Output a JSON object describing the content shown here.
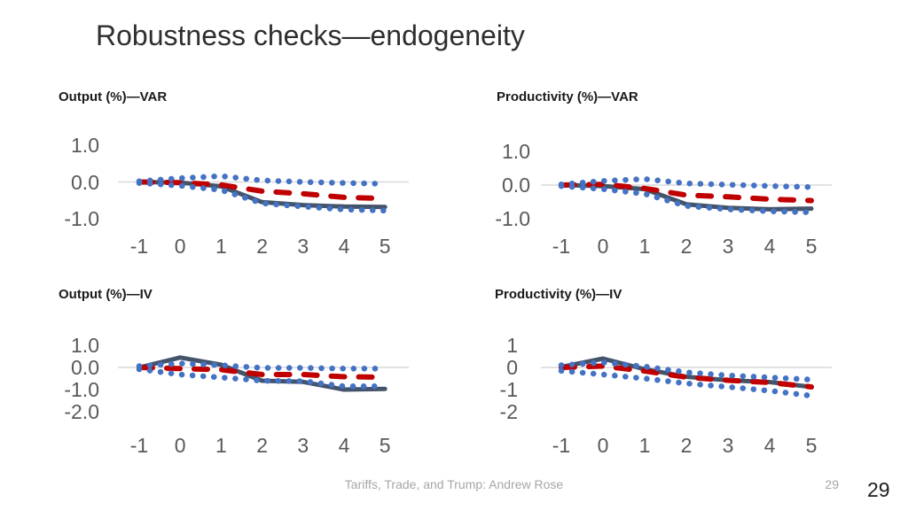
{
  "slide": {
    "title": "Robustness checks—endogeneity"
  },
  "footer": {
    "credit": "Tariffs, Trade, and Trump: Andrew Rose",
    "page_small": "29",
    "page": "29"
  },
  "colors": {
    "solid_line": "#44546A",
    "dashed_line": "#C00000",
    "dotted_band": "#4472C4",
    "gridline": "#D9D9D9",
    "tick_text": "#595959"
  },
  "chart_data": [
    {
      "type": "line",
      "title": "Output (%)—VAR",
      "x": [
        -1,
        0,
        1,
        2,
        3,
        4,
        5
      ],
      "xtick_labels": [
        "-1",
        "0",
        "1",
        "2",
        "3",
        "4",
        "5"
      ],
      "ytick_labels": [
        "1.0",
        "0.0",
        "-1.0"
      ],
      "ylim": [
        -1.0,
        1.0
      ],
      "grid": "zero-line-only",
      "legend": "none",
      "series": [
        {
          "name": "point-estimate-solid",
          "style": "solid",
          "color": "#44546A",
          "values": [
            0,
            -0.02,
            -0.12,
            -0.55,
            -0.63,
            -0.67,
            -0.68
          ]
        },
        {
          "name": "alt-estimate-dashed",
          "style": "dashed",
          "color": "#C00000",
          "values": [
            0,
            -0.02,
            -0.08,
            -0.25,
            -0.32,
            -0.42,
            -0.45
          ]
        },
        {
          "name": "band-upper-dotted",
          "style": "dotted",
          "color": "#4472C4",
          "values": [
            0.02,
            0.1,
            0.16,
            0.04,
            0.0,
            -0.03,
            -0.05
          ]
        },
        {
          "name": "band-lower-dotted",
          "style": "dotted",
          "color": "#4472C4",
          "values": [
            -0.03,
            -0.1,
            -0.22,
            -0.58,
            -0.67,
            -0.75,
            -0.78
          ]
        }
      ]
    },
    {
      "type": "line",
      "title": "Productivity (%)—VAR",
      "x": [
        -1,
        0,
        1,
        2,
        3,
        4,
        5
      ],
      "xtick_labels": [
        "-1",
        "0",
        "1",
        "2",
        "3",
        "4",
        "5"
      ],
      "ytick_labels": [
        "1.0",
        "0.0",
        "-1.0"
      ],
      "ylim": [
        -1.0,
        1.0
      ],
      "grid": "zero-line-only",
      "legend": "none",
      "series": [
        {
          "name": "point-estimate-solid",
          "style": "solid",
          "color": "#44546A",
          "values": [
            0,
            -0.03,
            -0.12,
            -0.57,
            -0.68,
            -0.72,
            -0.7
          ]
        },
        {
          "name": "alt-estimate-dashed",
          "style": "dashed",
          "color": "#C00000",
          "values": [
            0,
            0.02,
            -0.1,
            -0.3,
            -0.35,
            -0.42,
            -0.46
          ]
        },
        {
          "name": "band-upper-dotted",
          "style": "dotted",
          "color": "#4472C4",
          "values": [
            0.02,
            0.12,
            0.18,
            0.05,
            0.01,
            -0.03,
            -0.06
          ]
        },
        {
          "name": "band-lower-dotted",
          "style": "dotted",
          "color": "#4472C4",
          "values": [
            -0.03,
            -0.12,
            -0.26,
            -0.62,
            -0.72,
            -0.78,
            -0.81
          ]
        }
      ]
    },
    {
      "type": "line",
      "title": "Output (%)—IV",
      "x": [
        -1,
        0,
        1,
        2,
        3,
        4,
        5
      ],
      "xtick_labels": [
        "-1",
        "0",
        "1",
        "2",
        "3",
        "4",
        "5"
      ],
      "ytick_labels": [
        "1.0",
        "0.0",
        "-1.0",
        "-2.0"
      ],
      "ylim": [
        -2.0,
        1.0
      ],
      "grid": "zero-line-only",
      "legend": "none",
      "series": [
        {
          "name": "point-estimate-solid",
          "style": "solid",
          "color": "#44546A",
          "values": [
            0,
            0.45,
            0.12,
            -0.6,
            -0.65,
            -1.0,
            -0.97
          ]
        },
        {
          "name": "alt-estimate-dashed",
          "style": "dashed",
          "color": "#C00000",
          "values": [
            0,
            -0.05,
            -0.1,
            -0.32,
            -0.32,
            -0.42,
            -0.44
          ]
        },
        {
          "name": "band-upper-dotted",
          "style": "dotted",
          "color": "#4472C4",
          "values": [
            0.06,
            0.18,
            0.1,
            -0.02,
            -0.02,
            -0.05,
            -0.05
          ]
        },
        {
          "name": "band-lower-dotted",
          "style": "dotted",
          "color": "#4472C4",
          "values": [
            -0.08,
            -0.32,
            -0.45,
            -0.6,
            -0.62,
            -0.85,
            -0.85
          ]
        }
      ]
    },
    {
      "type": "line",
      "title": "Productivity (%)—IV",
      "x": [
        -1,
        0,
        1,
        2,
        3,
        4,
        5
      ],
      "xtick_labels": [
        "-1",
        "0",
        "1",
        "2",
        "3",
        "4",
        "5"
      ],
      "ytick_labels": [
        "1",
        "0",
        "-1",
        "-2"
      ],
      "ylim": [
        -2.0,
        1.0
      ],
      "grid": "zero-line-only",
      "legend": "none",
      "series": [
        {
          "name": "point-estimate-solid",
          "style": "solid",
          "color": "#44546A",
          "values": [
            0.02,
            0.4,
            -0.08,
            -0.42,
            -0.58,
            -0.66,
            -0.88
          ]
        },
        {
          "name": "alt-estimate-dashed",
          "style": "dashed",
          "color": "#C00000",
          "values": [
            0,
            0.06,
            -0.16,
            -0.44,
            -0.58,
            -0.68,
            -0.88
          ]
        },
        {
          "name": "band-upper-dotted",
          "style": "dotted",
          "color": "#4472C4",
          "values": [
            0.1,
            0.22,
            0.04,
            -0.22,
            -0.36,
            -0.45,
            -0.55
          ]
        },
        {
          "name": "band-lower-dotted",
          "style": "dotted",
          "color": "#4472C4",
          "values": [
            -0.15,
            -0.32,
            -0.5,
            -0.72,
            -0.88,
            -1.05,
            -1.28
          ]
        }
      ]
    }
  ]
}
